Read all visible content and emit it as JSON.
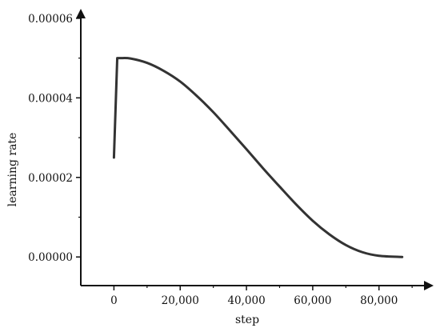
{
  "chart_data": {
    "type": "line",
    "title": "",
    "xlabel": "step",
    "ylabel": "learning rate",
    "xlim": [
      -10000,
      96000
    ],
    "ylim": [
      -7.2e-06,
      6.36e-05
    ],
    "x_ticks": [
      {
        "value": 0,
        "label": "0"
      },
      {
        "value": 20000,
        "label": "20,000"
      },
      {
        "value": 40000,
        "label": "40,000"
      },
      {
        "value": 60000,
        "label": "60,000"
      },
      {
        "value": 80000,
        "label": "80,000"
      }
    ],
    "y_ticks": [
      {
        "value": 0,
        "label": "0.00000"
      },
      {
        "value": 2e-05,
        "label": "0.00002"
      },
      {
        "value": 4e-05,
        "label": "0.00004"
      },
      {
        "value": 6e-05,
        "label": "0.00006"
      }
    ],
    "grid": false,
    "legend": "none",
    "series": [
      {
        "color": "#333333",
        "points": [
          {
            "x": 0,
            "y": 2.5e-05
          },
          {
            "x": 1000,
            "y": 5e-05
          },
          {
            "x": 2000,
            "y": 5e-05
          },
          {
            "x": 5000,
            "y": 4.99e-05
          },
          {
            "x": 10000,
            "y": 4.88e-05
          },
          {
            "x": 15000,
            "y": 4.68e-05
          },
          {
            "x": 20000,
            "y": 4.41e-05
          },
          {
            "x": 25000,
            "y": 4.05e-05
          },
          {
            "x": 30000,
            "y": 3.64e-05
          },
          {
            "x": 35000,
            "y": 3.18e-05
          },
          {
            "x": 40000,
            "y": 2.71e-05
          },
          {
            "x": 45000,
            "y": 2.23e-05
          },
          {
            "x": 50000,
            "y": 1.77e-05
          },
          {
            "x": 55000,
            "y": 1.32e-05
          },
          {
            "x": 60000,
            "y": 9.1e-06
          },
          {
            "x": 65000,
            "y": 5.7e-06
          },
          {
            "x": 70000,
            "y": 3e-06
          },
          {
            "x": 75000,
            "y": 1.2e-06
          },
          {
            "x": 80000,
            "y": 3e-07
          },
          {
            "x": 87000,
            "y": 0.0
          }
        ]
      }
    ]
  }
}
